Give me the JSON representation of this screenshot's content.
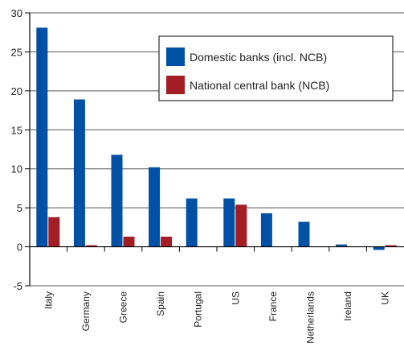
{
  "chart_data": {
    "type": "bar",
    "categories": [
      "Italy",
      "Germany",
      "Greece",
      "Spain",
      "Portugal",
      "US",
      "France",
      "Netherlands",
      "Ireland",
      "UK"
    ],
    "series": [
      {
        "name": "Domestic banks (incl. NCB)",
        "color": "#0050a5",
        "values": [
          28.1,
          18.9,
          11.8,
          10.2,
          6.2,
          6.2,
          4.3,
          3.2,
          0.3,
          -0.4
        ]
      },
      {
        "name": "National central bank (NCB)",
        "color": "#a31d24",
        "values": [
          3.8,
          0.2,
          1.3,
          1.3,
          0,
          5.4,
          0,
          0,
          0,
          0.2
        ]
      }
    ],
    "yticks": [
      "30",
      "25",
      "20",
      "15",
      "10",
      "5",
      "0",
      "-5"
    ],
    "ylim": [
      -5,
      30
    ],
    "grid": true,
    "legend_position": "top-right"
  }
}
